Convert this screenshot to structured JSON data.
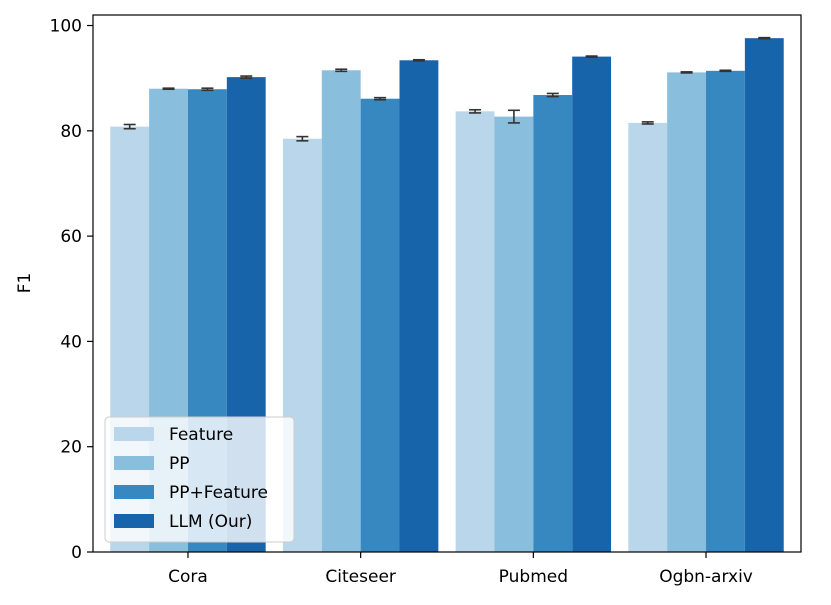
{
  "chart_data": {
    "type": "bar",
    "title": "",
    "xlabel": "",
    "ylabel": "F1",
    "ylim": [
      0,
      102
    ],
    "yticks": [
      0,
      20,
      40,
      60,
      80,
      100
    ],
    "categories": [
      "Cora",
      "Citeseer",
      "Pubmed",
      "Ogbn-arxiv"
    ],
    "series": [
      {
        "name": "Feature",
        "color": "#bad6eb",
        "values": [
          80.8,
          78.5,
          83.7,
          81.5
        ],
        "errors": [
          0.4,
          0.4,
          0.3,
          0.2
        ]
      },
      {
        "name": "PP",
        "color": "#89bedc",
        "values": [
          88.0,
          91.5,
          82.7,
          91.1
        ],
        "errors": [
          0.1,
          0.2,
          1.2,
          0.1
        ]
      },
      {
        "name": "PP+Feature",
        "color": "#3787c0",
        "values": [
          87.9,
          86.1,
          86.8,
          91.4
        ],
        "errors": [
          0.2,
          0.2,
          0.3,
          0.1
        ]
      },
      {
        "name": "LLM (Our)",
        "color": "#1764ab",
        "values": [
          90.2,
          93.4,
          94.1,
          97.6
        ],
        "errors": [
          0.2,
          0.1,
          0.1,
          0.1
        ]
      }
    ],
    "grid": false,
    "legend_position": "lower-left"
  }
}
